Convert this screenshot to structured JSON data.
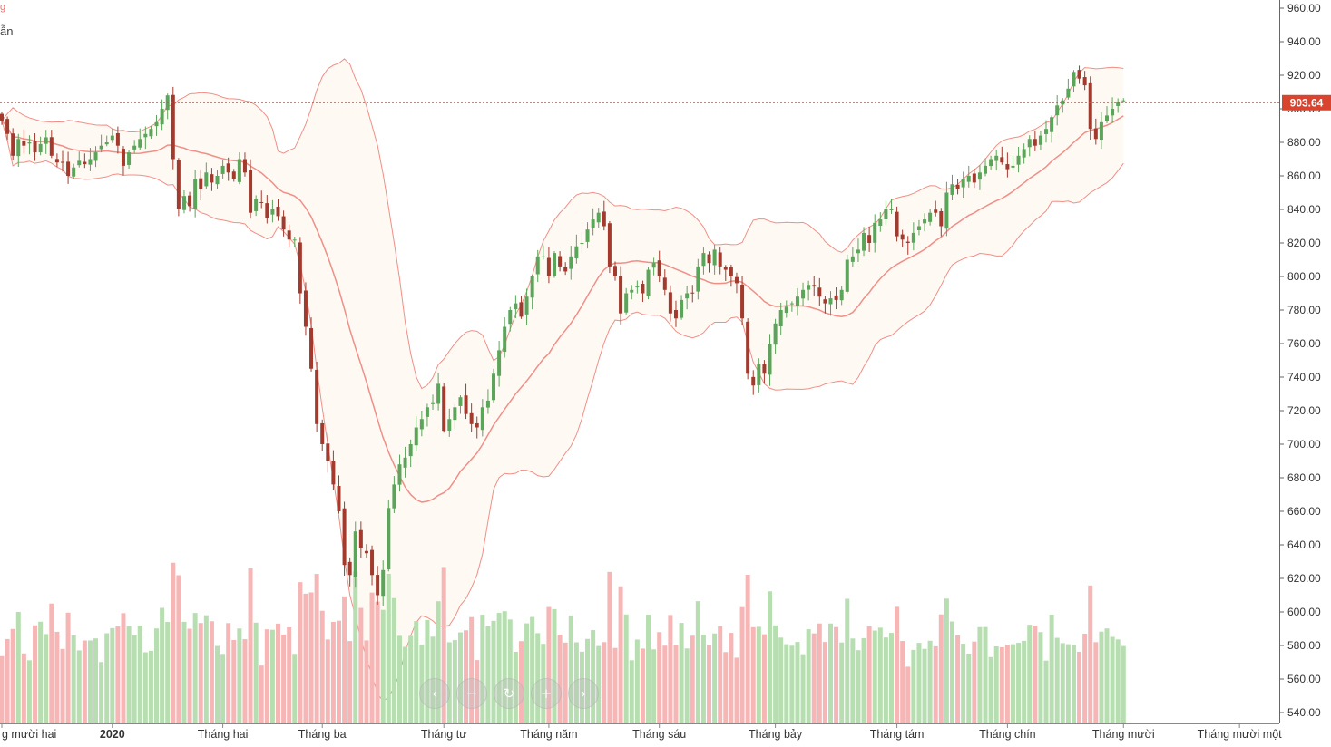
{
  "legend": {
    "line1": "g",
    "line2": "ẫn"
  },
  "last_price_label": "903.64",
  "colors": {
    "up": "#5aa55a",
    "down": "#a33a2e",
    "bb": "#f08f87",
    "bb_fill": "#fff9f3",
    "vol_up": "#b6deb0",
    "vol_down": "#f6b6b6",
    "price_line": "#e0463c",
    "label_bg": "#d9442f"
  },
  "nav": {
    "icons": [
      "chevron-left-icon",
      "minus-icon",
      "reset-icon",
      "plus-icon",
      "chevron-right-icon"
    ],
    "glyphs": [
      "‹",
      "−",
      "↻",
      "+",
      "›"
    ]
  },
  "chart_data": {
    "type": "candlestick",
    "y_axis": {
      "min": 540,
      "max": 960,
      "ticks": [
        "960.00",
        "940.00",
        "920.00",
        "900.00",
        "880.00",
        "860.00",
        "840.00",
        "820.00",
        "800.00",
        "780.00",
        "760.00",
        "740.00",
        "720.00",
        "700.00",
        "680.00",
        "660.00",
        "640.00",
        "620.00",
        "600.00",
        "580.00",
        "560.00",
        "540.00"
      ]
    },
    "x_axis_labels": [
      {
        "text": "g mười hai",
        "bold": false,
        "index": 0
      },
      {
        "text": "2020",
        "bold": true,
        "index": 20
      },
      {
        "text": "Tháng hai",
        "bold": false,
        "index": 40
      },
      {
        "text": "Tháng ba",
        "bold": false,
        "index": 58
      },
      {
        "text": "Tháng tư",
        "bold": false,
        "index": 80
      },
      {
        "text": "Tháng năm",
        "bold": false,
        "index": 99
      },
      {
        "text": "Tháng sáu",
        "bold": false,
        "index": 119
      },
      {
        "text": "Tháng bảy",
        "bold": false,
        "index": 140
      },
      {
        "text": "Tháng tám",
        "bold": false,
        "index": 162
      },
      {
        "text": "Tháng chín",
        "bold": false,
        "index": 182
      },
      {
        "text": "Tháng mười",
        "bold": false,
        "index": 203
      },
      {
        "text": "Tháng mười một",
        "bold": false,
        "index": 224
      }
    ],
    "last_price": 903.64,
    "closes": [
      893,
      885,
      872,
      882,
      878,
      880,
      874,
      879,
      883,
      872,
      868,
      868,
      860,
      865,
      869,
      867,
      870,
      874,
      878,
      880,
      884,
      878,
      866,
      874,
      878,
      882,
      885,
      888,
      892,
      900,
      908,
      870,
      840,
      848,
      842,
      858,
      852,
      862,
      856,
      860,
      866,
      862,
      858,
      870,
      862,
      838,
      846,
      844,
      835,
      840,
      836,
      828,
      822,
      822,
      790,
      770,
      745,
      712,
      700,
      690,
      676,
      660,
      628,
      622,
      648,
      638,
      635,
      622,
      610,
      625,
      662,
      676,
      688,
      692,
      700,
      710,
      715,
      722,
      725,
      736,
      708,
      715,
      722,
      728,
      718,
      712,
      710,
      722,
      726,
      742,
      756,
      770,
      780,
      784,
      776,
      788,
      800,
      812,
      812,
      800,
      814,
      806,
      803,
      812,
      818,
      820,
      828,
      834,
      838,
      830,
      806,
      800,
      778,
      790,
      792,
      794,
      790,
      804,
      808,
      800,
      792,
      778,
      775,
      786,
      790,
      790,
      806,
      814,
      808,
      816,
      806,
      804,
      800,
      796,
      775,
      742,
      735,
      748,
      742,
      760,
      772,
      780,
      782,
      784,
      788,
      792,
      795,
      794,
      788,
      784,
      787,
      786,
      792,
      810,
      812,
      816,
      826,
      820,
      832,
      834,
      840,
      840,
      824,
      822,
      820,
      826,
      830,
      834,
      838,
      838,
      830,
      850,
      855,
      852,
      858,
      860,
      856,
      862,
      866,
      870,
      872,
      868,
      864,
      866,
      872,
      876,
      882,
      878,
      884,
      888,
      895,
      902,
      905,
      912,
      922,
      918,
      914,
      888,
      882,
      892,
      896,
      900,
      904,
      905
    ]
  }
}
